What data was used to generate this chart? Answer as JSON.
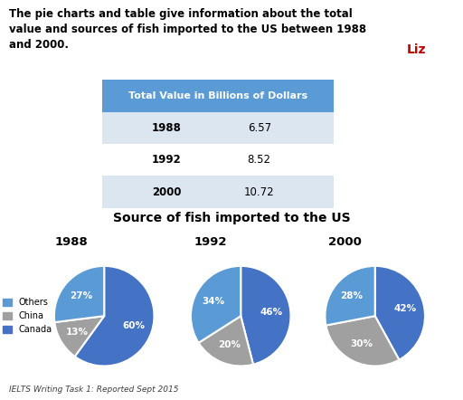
{
  "title_text": "The pie charts and table give information about the total\nvalue and sources of fish imported to the US between 1988\nand 2000.",
  "table_header": "Total Value in Billions of Dollars",
  "table_rows": [
    [
      "1988",
      "6.57"
    ],
    [
      "1992",
      "8.52"
    ],
    [
      "2000",
      "10.72"
    ]
  ],
  "table_header_color": "#5b9bd5",
  "table_row_colors": [
    "#dce6f1",
    "#ffffff",
    "#dce6f1"
  ],
  "pie_title": "Source of fish imported to the US",
  "pie_years": [
    "1988",
    "1992",
    "2000"
  ],
  "pie_data": [
    [
      60,
      13,
      27
    ],
    [
      46,
      20,
      34
    ],
    [
      42,
      30,
      28
    ]
  ],
  "pie_colors": [
    "#4472c4",
    "#a0a0a0",
    "#5b9bd5"
  ],
  "legend_labels": [
    "Others",
    "China",
    "Canada"
  ],
  "legend_colors": [
    "#5b9bd5",
    "#a0a0a0",
    "#4472c4"
  ],
  "footer_text": "IELTS Writing Task 1: Reported Sept 2015",
  "ielts_bg": "#c00000",
  "ielts_fg": "#ffffff"
}
